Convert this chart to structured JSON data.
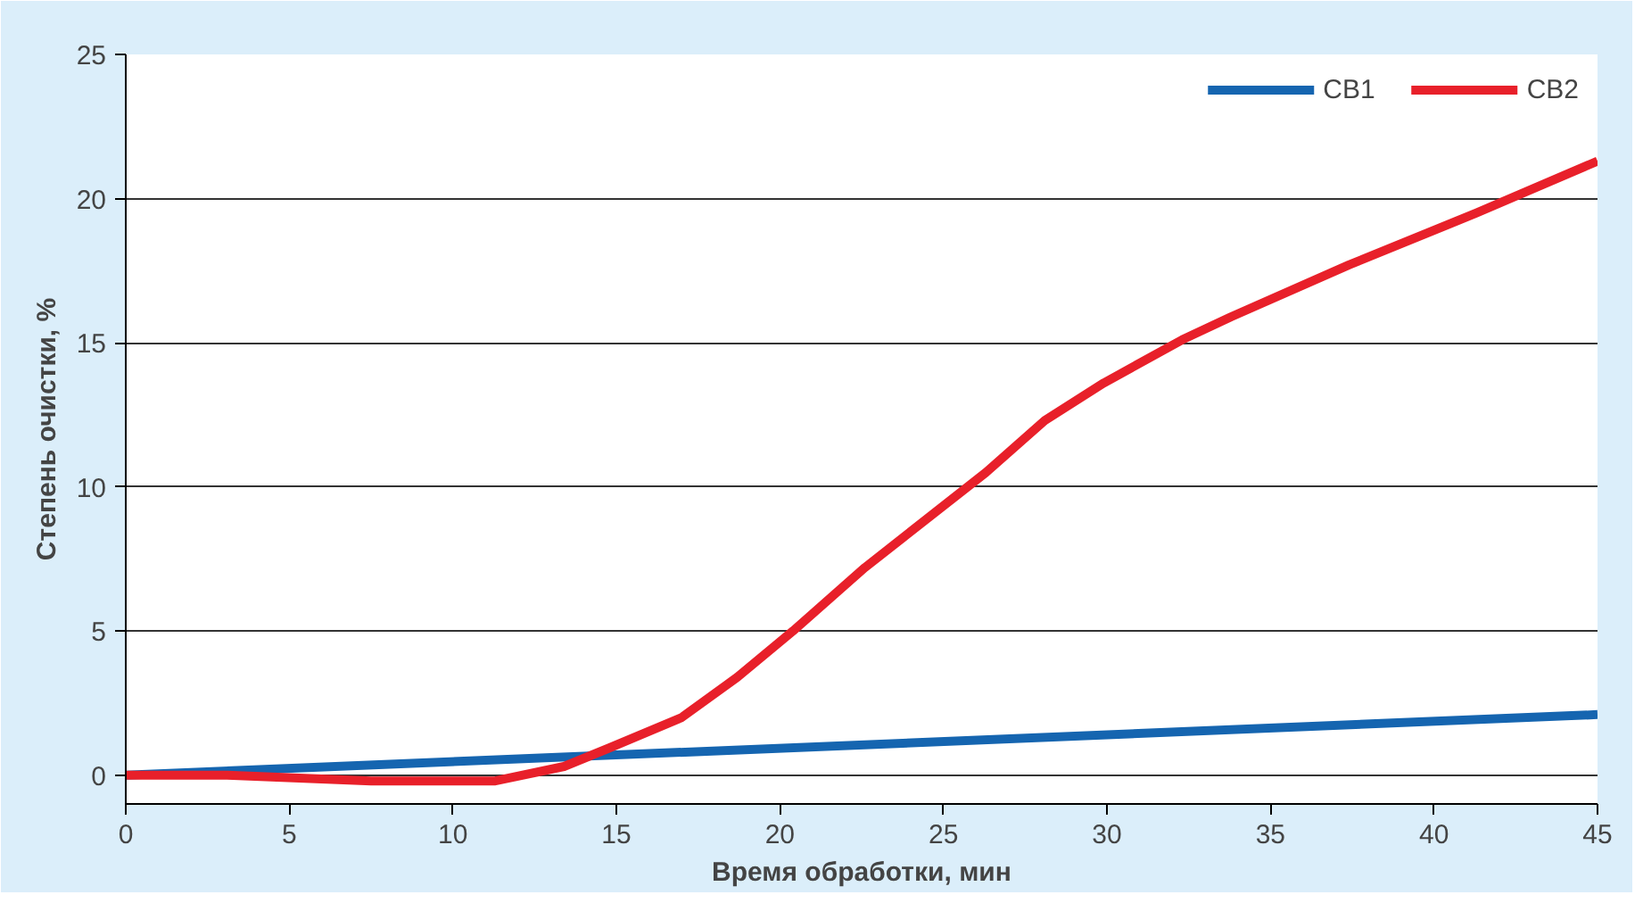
{
  "chart_data": {
    "type": "line",
    "xlabel": "Время обработки, мин",
    "ylabel": "Степень очистки, %",
    "xlim": [
      0,
      45
    ],
    "ylim": [
      -1,
      25
    ],
    "xticks": [
      0,
      5,
      10,
      15,
      20,
      25,
      30,
      35,
      40,
      45
    ],
    "yticks": [
      0,
      5,
      10,
      15,
      20,
      25
    ],
    "grid": "y",
    "legend": "top right",
    "marker": "none",
    "line_style": "solid",
    "series": [
      {
        "name": "СВ1",
        "color": "#1565b0",
        "x": [
          0,
          45
        ],
        "values": [
          0,
          2.1
        ]
      },
      {
        "name": "СВ2",
        "color": "#e8202a",
        "x": [
          0,
          3.1,
          7.5,
          11.3,
          13.4,
          14.8,
          17,
          18.7,
          20.4,
          22.6,
          26.3,
          28.1,
          29.9,
          32.3,
          33.8,
          37.4,
          41.3,
          45
        ],
        "values": [
          0,
          0,
          -0.2,
          -0.2,
          0.3,
          0.95,
          2.0,
          3.4,
          5.0,
          7.2,
          10.5,
          12.3,
          13.6,
          15.1,
          15.9,
          17.7,
          19.5,
          21.3
        ]
      }
    ]
  }
}
